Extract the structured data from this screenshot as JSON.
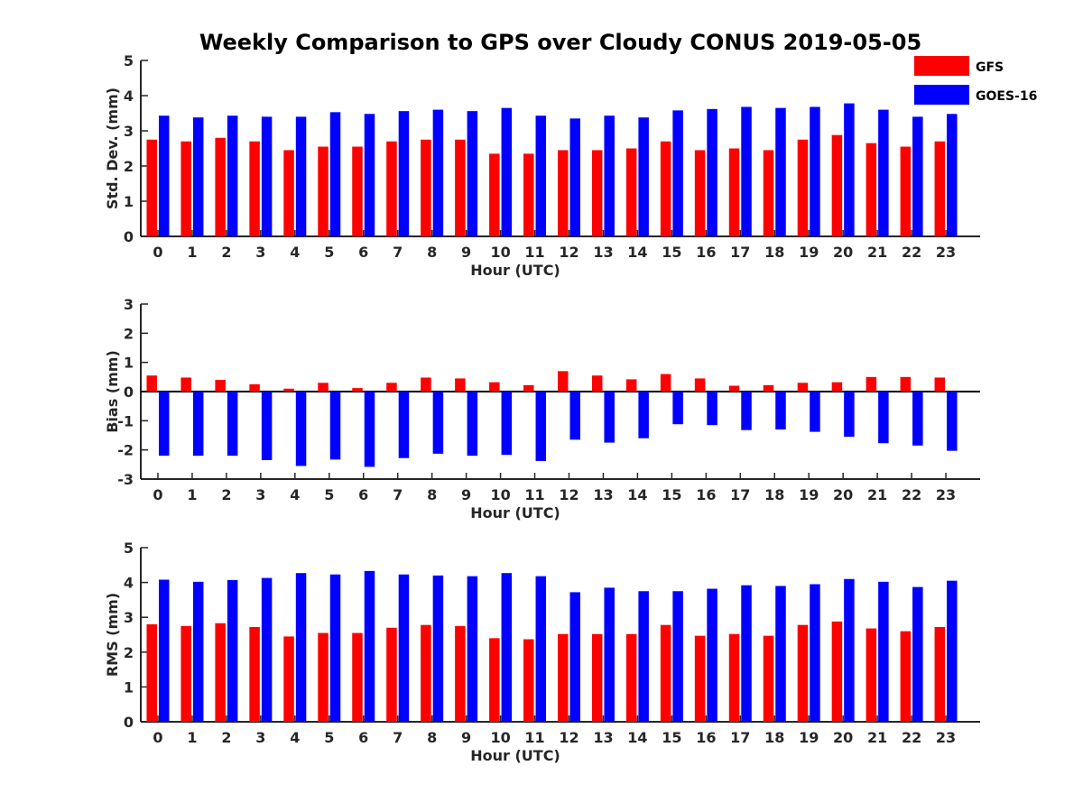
{
  "title": "Weekly Comparison to GPS over Cloudy CONUS 2019-05-05",
  "colors": {
    "GFS": "#ff0000",
    "GOES-16": "#0000ff"
  },
  "chart_data": [
    {
      "type": "bar",
      "categories": [
        "0",
        "1",
        "2",
        "3",
        "4",
        "5",
        "6",
        "7",
        "8",
        "9",
        "10",
        "11",
        "12",
        "13",
        "14",
        "15",
        "16",
        "17",
        "18",
        "19",
        "20",
        "21",
        "22",
        "23"
      ],
      "xlabel": "Hour (UTC)",
      "ylabel": "Std. Dev. (mm)",
      "ylim": [
        0,
        5
      ],
      "yticks": [
        "0",
        "1",
        "2",
        "3",
        "4",
        "5"
      ],
      "series": [
        {
          "name": "GFS",
          "values": [
            2.75,
            2.7,
            2.8,
            2.7,
            2.45,
            2.55,
            2.55,
            2.7,
            2.75,
            2.75,
            2.35,
            2.35,
            2.45,
            2.45,
            2.5,
            2.7,
            2.45,
            2.5,
            2.45,
            2.75,
            2.88,
            2.65,
            2.55,
            2.7
          ]
        },
        {
          "name": "GOES-16",
          "values": [
            3.43,
            3.38,
            3.43,
            3.4,
            3.4,
            3.53,
            3.48,
            3.56,
            3.6,
            3.56,
            3.65,
            3.43,
            3.35,
            3.43,
            3.38,
            3.58,
            3.62,
            3.68,
            3.65,
            3.68,
            3.78,
            3.6,
            3.4,
            3.48
          ]
        }
      ],
      "legend": "top-right",
      "grid": false
    },
    {
      "type": "bar",
      "categories": [
        "0",
        "1",
        "2",
        "3",
        "4",
        "5",
        "6",
        "7",
        "8",
        "9",
        "10",
        "11",
        "12",
        "13",
        "14",
        "15",
        "16",
        "17",
        "18",
        "19",
        "20",
        "21",
        "22",
        "23"
      ],
      "xlabel": "Hour (UTC)",
      "ylabel": "Bias (mm)",
      "ylim": [
        -3,
        3
      ],
      "yticks": [
        "-3",
        "-2",
        "-1",
        "0",
        "1",
        "2",
        "3"
      ],
      "series": [
        {
          "name": "GFS",
          "values": [
            0.55,
            0.48,
            0.4,
            0.25,
            0.1,
            0.3,
            0.12,
            0.3,
            0.48,
            0.45,
            0.32,
            0.22,
            0.7,
            0.55,
            0.42,
            0.6,
            0.45,
            0.2,
            0.22,
            0.3,
            0.32,
            0.5,
            0.5,
            0.48
          ]
        },
        {
          "name": "GOES-16",
          "values": [
            -2.2,
            -2.2,
            -2.2,
            -2.35,
            -2.55,
            -2.33,
            -2.58,
            -2.28,
            -2.13,
            -2.2,
            -2.17,
            -2.38,
            -1.65,
            -1.75,
            -1.6,
            -1.12,
            -1.15,
            -1.32,
            -1.3,
            -1.38,
            -1.55,
            -1.77,
            -1.85,
            -2.03
          ]
        }
      ],
      "grid": false
    },
    {
      "type": "bar",
      "categories": [
        "0",
        "1",
        "2",
        "3",
        "4",
        "5",
        "6",
        "7",
        "8",
        "9",
        "10",
        "11",
        "12",
        "13",
        "14",
        "15",
        "16",
        "17",
        "18",
        "19",
        "20",
        "21",
        "22",
        "23"
      ],
      "xlabel": "Hour (UTC)",
      "ylabel": "RMS (mm)",
      "ylim": [
        0,
        5
      ],
      "yticks": [
        "0",
        "1",
        "2",
        "3",
        "4",
        "5"
      ],
      "series": [
        {
          "name": "GFS",
          "values": [
            2.8,
            2.75,
            2.83,
            2.72,
            2.45,
            2.55,
            2.55,
            2.7,
            2.78,
            2.75,
            2.4,
            2.37,
            2.52,
            2.52,
            2.52,
            2.78,
            2.47,
            2.52,
            2.47,
            2.78,
            2.88,
            2.68,
            2.6,
            2.72
          ]
        },
        {
          "name": "GOES-16",
          "values": [
            4.08,
            4.02,
            4.07,
            4.13,
            4.27,
            4.23,
            4.33,
            4.23,
            4.2,
            4.18,
            4.27,
            4.18,
            3.72,
            3.85,
            3.75,
            3.75,
            3.82,
            3.92,
            3.9,
            3.95,
            4.1,
            4.02,
            3.87,
            4.05
          ]
        }
      ],
      "grid": false
    }
  ]
}
